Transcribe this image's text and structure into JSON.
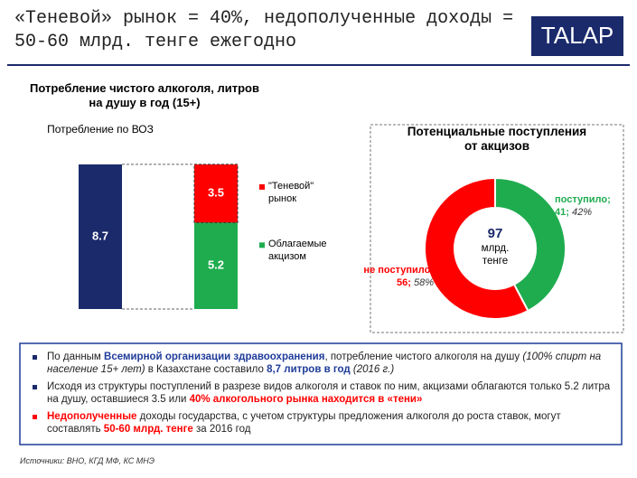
{
  "header": {
    "title": "«Теневой» рынок = 40%, недополученные доходы = 50-60 млрд. тенге ежегодно",
    "logo": "TALAP"
  },
  "chart_data": [
    {
      "type": "bar",
      "title": "Потребление чистого алкоголя, литров на душу в год (15+)",
      "categories": [
        "Потребление по ВОЗ",
        null
      ],
      "series": [
        {
          "color": "#1b2a6b",
          "values": [
            8.7,
            null
          ]
        },
        {
          "name": "Облагаемые акцизом",
          "color": "#1fac4f",
          "values": [
            null,
            5.2
          ]
        },
        {
          "name": "\"Теневой\" рынок",
          "color": "#ff0000",
          "values": [
            null,
            3.5
          ]
        }
      ]
    },
    {
      "type": "pie",
      "title": "Потенциальные поступления от акцизов",
      "total": 97,
      "total_label": "млрд. тенге",
      "categories": [
        "поступило;",
        "не поступило;"
      ],
      "values": [
        41,
        56
      ],
      "value_labels": [
        "41;",
        "56;"
      ],
      "share_labels": [
        "42%",
        "58%"
      ],
      "colors": [
        "#1fac4f",
        "#ff0000"
      ]
    }
  ],
  "bullets": [
    {
      "marker_color": "#1b2a6b",
      "segments": [
        {
          "text": "По данным "
        },
        {
          "text": "Всемирной организации здравоохранения",
          "style": "bold-blue"
        },
        {
          "text": ", потребление чистого алкоголя на душу "
        },
        {
          "text": "(100% спирт на население 15+ лет)",
          "style": "italic"
        },
        {
          "text": " в Казахстане составило "
        },
        {
          "text": "8,7 литров в год",
          "style": "bold-blue"
        },
        {
          "text": " "
        },
        {
          "text": "(2016 г.)",
          "style": "italic"
        }
      ]
    },
    {
      "marker_color": "#1b2a6b",
      "segments": [
        {
          "text": "Исходя из структуры  поступлений в разрезе видов алкоголя и ставок по ним, акцизами облагаются только 5.2 литра на душу, оставшиеся 3.5 или "
        },
        {
          "text": "40% алкогольного рынка находится в «тени»",
          "style": "bold-red"
        }
      ]
    },
    {
      "marker_color": "#ff0000",
      "segments": [
        {
          "text": "Недополученные",
          "style": "bold-red"
        },
        {
          "text": " доходы государства, с учетом структуры  предложения алкоголя до роста ставок, могут составлять "
        },
        {
          "text": "50-60 млрд. тенге",
          "style": "bold-red"
        },
        {
          "text": " за 2016 год"
        }
      ]
    }
  ],
  "source": "Источники: ВНО, КГД МФ, КС МНЭ"
}
